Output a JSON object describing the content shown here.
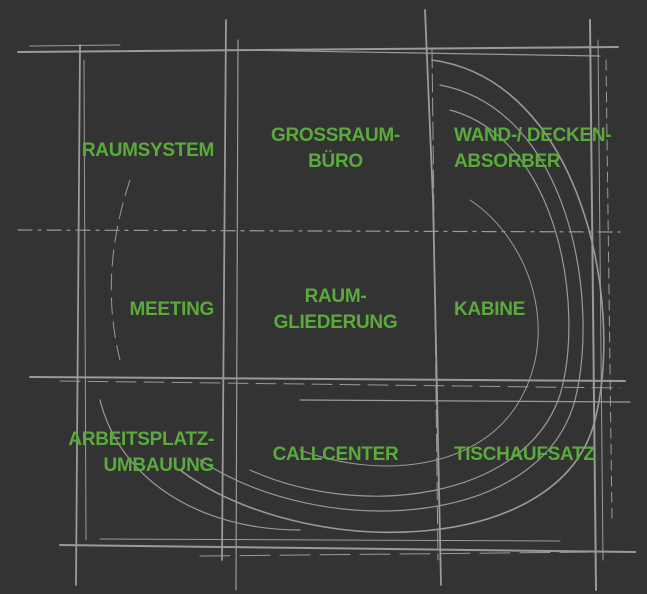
{
  "accent_color": "#5aaa3c",
  "line_color": "#9a9a9a",
  "background_color": "#333333",
  "cells": {
    "raumsystem": [
      "RAUMSYSTEM"
    ],
    "grossraum_buero": [
      "GROSSRAUM-",
      "BÜRO"
    ],
    "wand_decken_absorber": [
      "WAND-/ DECKEN-",
      "ABSORBER"
    ],
    "meeting": [
      "MEETING"
    ],
    "raum_gliederung": [
      "RAUM-",
      "GLIEDERUNG"
    ],
    "kabine": [
      "KABINE"
    ],
    "arbeitsplatz_umbauung": [
      "ARBEITSPLATZ-",
      "UMBAUUNG"
    ],
    "callcenter": [
      "CALLCENTER"
    ],
    "tischaufsatz": [
      "TISCHAUFSATZ"
    ]
  }
}
